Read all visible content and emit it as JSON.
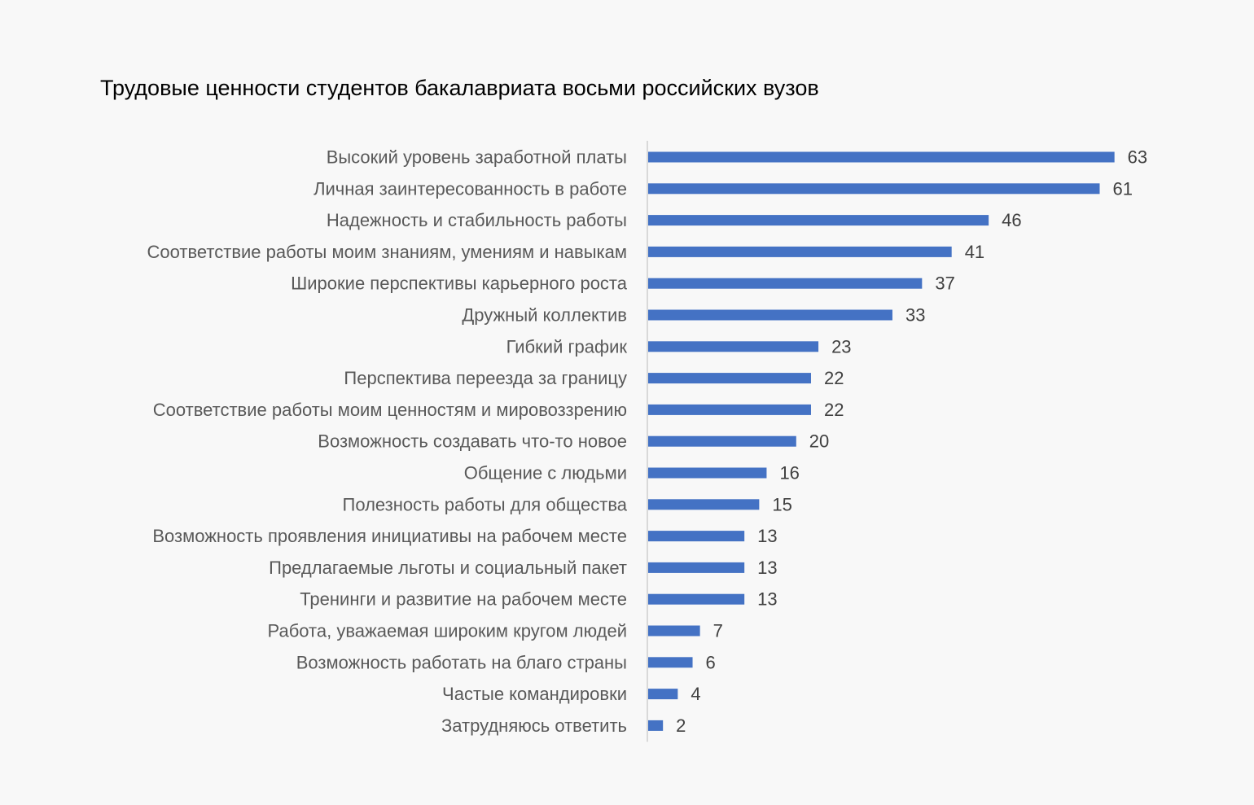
{
  "chart_data": {
    "type": "bar",
    "orientation": "horizontal",
    "title": "Трудовые ценности студентов бакалавриата восьми российских вузов",
    "xlabel": "",
    "ylabel": "",
    "categories": [
      "Высокий уровень заработной платы",
      "Личная заинтересованность в работе",
      "Надежность и стабильность работы",
      "Соответствие работы моим знаниям, умениям и навыкам",
      "Широкие перспективы карьерного роста",
      "Дружный коллектив",
      "Гибкий график",
      "Перспектива переезда за границу",
      "Соответствие работы моим ценностям и мировоззрению",
      "Возможность создавать что-то новое",
      "Общение с людьми",
      "Полезность работы для общества",
      "Возможность проявления инициативы на рабочем месте",
      "Предлагаемые льготы и социальный пакет",
      "Тренинги и развитие на рабочем месте",
      "Работа, уважаемая широким кругом людей",
      "Возможность работать на благо страны",
      "Частые командировки",
      "Затрудняюсь ответить"
    ],
    "values": [
      63,
      61,
      46,
      41,
      37,
      33,
      23,
      22,
      22,
      20,
      16,
      15,
      13,
      13,
      13,
      7,
      6,
      4,
      2
    ],
    "xlim": [
      0,
      63
    ],
    "data_labels": true,
    "grid": false,
    "legend": "none",
    "bar_color": "#4472c4"
  }
}
